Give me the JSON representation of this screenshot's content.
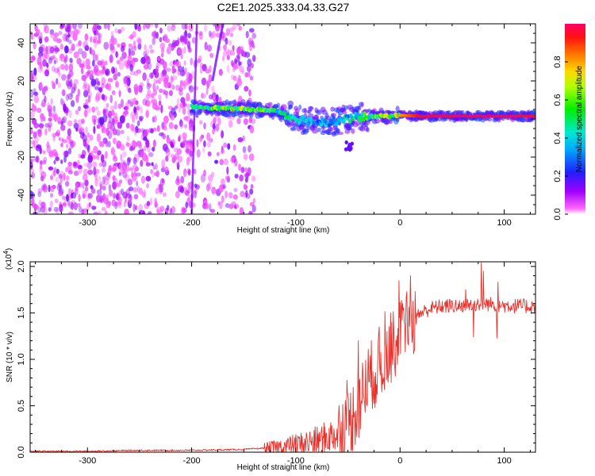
{
  "title": "C2E1.2025.333.04.33.G27",
  "colors": {
    "snr_line": "#e8302a",
    "axis": "#000000",
    "background": "#ffffff"
  },
  "colorbar": {
    "label": "Normalized spectral amplitude",
    "range": [
      0,
      1
    ],
    "ticks": [
      0.0,
      0.2,
      0.4,
      0.6,
      0.8
    ],
    "tick_labels": [
      "0.0",
      "0.2",
      "0.4",
      "0.6",
      "0.8"
    ]
  },
  "chart_data": [
    {
      "type": "heatmap",
      "name": "spectrogram",
      "xlabel": "Height of straight line (km)",
      "ylabel": "Frequency (Hz)",
      "xlim": [
        -355,
        130
      ],
      "ylim": [
        -50,
        50
      ],
      "x_ticks": [
        -300,
        -200,
        -100,
        0,
        100
      ],
      "x_tick_labels": [
        "-300",
        "-200",
        "-100",
        "0",
        "100"
      ],
      "y_ticks": [
        -40,
        -20,
        0,
        20,
        40
      ],
      "y_tick_labels": [
        "-40",
        "-20",
        "0",
        "20",
        "40"
      ],
      "signal_track": [
        {
          "x": -200,
          "freq": 6.5,
          "amp": 0.55
        },
        {
          "x": -180,
          "freq": 6.0,
          "amp": 0.65
        },
        {
          "x": -160,
          "freq": 5.5,
          "amp": 0.75
        },
        {
          "x": -140,
          "freq": 5.0,
          "amp": 0.7
        },
        {
          "x": -120,
          "freq": 4.5,
          "amp": 0.6
        },
        {
          "x": -100,
          "freq": 0.5,
          "amp": 0.45
        },
        {
          "x": -80,
          "freq": -1.5,
          "amp": 0.4
        },
        {
          "x": -60,
          "freq": -1.0,
          "amp": 0.45
        },
        {
          "x": -40,
          "freq": 1.0,
          "amp": 0.55
        },
        {
          "x": -20,
          "freq": 1.5,
          "amp": 0.7
        },
        {
          "x": 0,
          "freq": 2.0,
          "amp": 0.8
        },
        {
          "x": 20,
          "freq": 1.5,
          "amp": 0.95
        },
        {
          "x": 60,
          "freq": 1.5,
          "amp": 0.98
        },
        {
          "x": 100,
          "freq": 1.5,
          "amp": 0.98
        },
        {
          "x": 125,
          "freq": 1.5,
          "amp": 0.95
        }
      ],
      "noise_extent_x": [
        -355,
        -140
      ]
    },
    {
      "type": "line",
      "name": "snr",
      "xlabel": "Height of straight line (km)",
      "ylabel": "SNR (10 * v/v)",
      "y_multiplier": "(x10",
      "y_multiplier_exp": "4",
      "y_multiplier_close": ")",
      "xlim": [
        -355,
        130
      ],
      "ylim": [
        0,
        2.05
      ],
      "x_ticks": [
        -300,
        -200,
        -100,
        0,
        100
      ],
      "x_tick_labels": [
        "-300",
        "-200",
        "-100",
        "0",
        "100"
      ],
      "y_ticks": [
        0.0,
        0.5,
        1.0,
        1.5,
        2.0
      ],
      "y_tick_labels": [
        "0.0",
        "0.5",
        "1.0",
        "1.5",
        "2.0"
      ],
      "envelope_x": [
        -355,
        -300,
        -250,
        -200,
        -150,
        -120,
        -100,
        -80,
        -60,
        -50,
        -40,
        -30,
        -20,
        -10,
        0,
        10,
        20,
        30,
        40,
        60,
        80,
        100,
        125
      ],
      "envelope_y": [
        0.01,
        0.01,
        0.02,
        0.02,
        0.03,
        0.05,
        0.08,
        0.12,
        0.2,
        0.3,
        0.5,
        0.8,
        0.9,
        1.1,
        1.25,
        1.4,
        1.5,
        1.55,
        1.57,
        1.58,
        1.6,
        1.58,
        1.57
      ]
    }
  ]
}
